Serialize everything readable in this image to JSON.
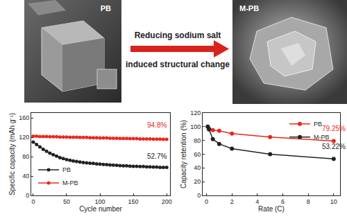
{
  "images": [
    {
      "label": "PB"
    },
    {
      "label": "M-PB"
    }
  ],
  "arrow": {
    "text": [
      "Reducing sodium salt",
      "induced structural change"
    ]
  },
  "chart_data": [
    {
      "type": "line",
      "marker": "circle",
      "x_label": "Cycle number",
      "y_label": "Specific capacity (mAh g⁻¹)",
      "x": [
        0,
        5,
        10,
        15,
        20,
        25,
        30,
        35,
        40,
        45,
        50,
        55,
        60,
        65,
        70,
        75,
        80,
        85,
        90,
        95,
        100,
        105,
        110,
        115,
        120,
        125,
        130,
        135,
        140,
        145,
        150,
        155,
        160,
        165,
        170,
        175,
        180,
        185,
        190,
        195,
        200
      ],
      "series": [
        {
          "name": "PB",
          "color": "#222222",
          "values": [
            110,
            105,
            100,
            95,
            91,
            87,
            84,
            81,
            78,
            76,
            74,
            72.5,
            71,
            70,
            69,
            68,
            67,
            66.5,
            66,
            65,
            64.5,
            64,
            63.5,
            63,
            62.5,
            62,
            61.5,
            61,
            61,
            60.5,
            60,
            60,
            59.5,
            59.5,
            59,
            59,
            58.5,
            58.5,
            58,
            58,
            58
          ]
        },
        {
          "name": "M-PB",
          "color": "#e8281e",
          "values": [
            122,
            122,
            121.5,
            121.5,
            121.5,
            121,
            121,
            121,
            120.5,
            120.5,
            120.5,
            120,
            120,
            120,
            119.5,
            119.5,
            119.5,
            119,
            119,
            119,
            118.5,
            118.5,
            118.5,
            118,
            118,
            118,
            117.5,
            117.5,
            117.5,
            117,
            117,
            117,
            116.5,
            116.5,
            116.5,
            116.5,
            116,
            116,
            116,
            115.8,
            115.7
          ]
        }
      ],
      "xlim": [
        -3,
        205
      ],
      "xticks": [
        0,
        50,
        100,
        150,
        200
      ],
      "ylim": [
        0,
        170
      ],
      "yticks": [
        0,
        40,
        80,
        120,
        160
      ],
      "legend": "lower left",
      "annotations": [
        {
          "text": "94.8%",
          "x": 185,
          "y": 134,
          "color": "#e8281e"
        },
        {
          "text": "52.7%",
          "x": 185,
          "y": 70,
          "color": "#222222"
        }
      ]
    },
    {
      "type": "line",
      "marker": "circle",
      "x_label": "Rate (C)",
      "y_label": "Capacity retention (%)",
      "x": [
        0.1,
        0.2,
        0.5,
        1,
        2,
        5,
        10
      ],
      "series": [
        {
          "name": "PB",
          "color": "#e8281e",
          "values": [
            100,
            97,
            95,
            94,
            90,
            85,
            79.25
          ]
        },
        {
          "name": "M-PB",
          "color": "#222222",
          "values": [
            100,
            96,
            82,
            75,
            68,
            60,
            53.22
          ]
        }
      ],
      "xlim": [
        -0.3,
        10.5
      ],
      "xticks": [
        0,
        2,
        4,
        6,
        8,
        10
      ],
      "ylim": [
        0,
        120
      ],
      "yticks": [
        0,
        20,
        40,
        60,
        80,
        100,
        120
      ],
      "legend": "upper right",
      "annotations": [
        {
          "text": "79.25%",
          "x": 10,
          "y": 90,
          "color": "#e8281e"
        },
        {
          "text": "53.22%",
          "x": 10,
          "y": 64,
          "color": "#222222"
        }
      ]
    }
  ]
}
